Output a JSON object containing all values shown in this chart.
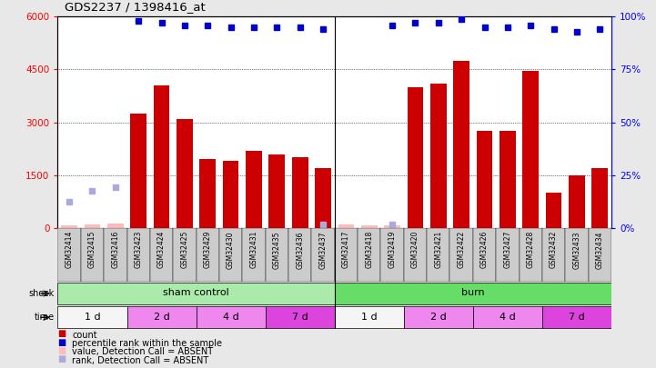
{
  "title": "GDS2237 / 1398416_at",
  "samples": [
    "GSM32414",
    "GSM32415",
    "GSM32416",
    "GSM32423",
    "GSM32424",
    "GSM32425",
    "GSM32429",
    "GSM32430",
    "GSM32431",
    "GSM32435",
    "GSM32436",
    "GSM32437",
    "GSM32417",
    "GSM32418",
    "GSM32419",
    "GSM32420",
    "GSM32421",
    "GSM32422",
    "GSM32426",
    "GSM32427",
    "GSM32428",
    "GSM32432",
    "GSM32433",
    "GSM32434"
  ],
  "counts": [
    80,
    100,
    130,
    3250,
    4050,
    3100,
    1950,
    1900,
    2200,
    2100,
    2000,
    1700,
    100,
    80,
    80,
    4000,
    4100,
    4750,
    2750,
    2750,
    4450,
    1000,
    1500,
    1700
  ],
  "percentile": [
    null,
    null,
    null,
    98,
    97,
    96,
    96,
    95,
    95,
    95,
    95,
    94,
    null,
    null,
    96,
    97,
    97,
    99,
    95,
    95,
    96,
    94,
    93,
    94
  ],
  "absent_count_vals": [
    80,
    100,
    130,
    null,
    null,
    null,
    null,
    null,
    null,
    null,
    null,
    null,
    100,
    80,
    80,
    null,
    null,
    null,
    null,
    null,
    null,
    null,
    null,
    null
  ],
  "absent_rank_vals": [
    750,
    1050,
    1150,
    null,
    null,
    null,
    null,
    null,
    null,
    null,
    null,
    100,
    null,
    null,
    100,
    null,
    null,
    null,
    null,
    null,
    null,
    null,
    null,
    null
  ],
  "ylim_left": [
    0,
    6000
  ],
  "ylim_right": [
    0,
    100
  ],
  "yticks_left": [
    0,
    1500,
    3000,
    4500,
    6000
  ],
  "yticks_right": [
    0,
    25,
    50,
    75,
    100
  ],
  "bar_color": "#cc0000",
  "blue_dot_color": "#0000cc",
  "absent_count_color": "#ffbbbb",
  "absent_rank_color": "#aaaadd",
  "shock_groups": [
    {
      "label": "sham control",
      "start": 0,
      "end": 11,
      "color": "#aaeaaa"
    },
    {
      "label": "burn",
      "start": 12,
      "end": 23,
      "color": "#66dd66"
    }
  ],
  "time_groups": [
    {
      "label": "1 d",
      "start": 0,
      "end": 2,
      "color": "#f5f5f5"
    },
    {
      "label": "2 d",
      "start": 3,
      "end": 5,
      "color": "#ee88ee"
    },
    {
      "label": "4 d",
      "start": 6,
      "end": 8,
      "color": "#ee88ee"
    },
    {
      "label": "7 d",
      "start": 9,
      "end": 11,
      "color": "#dd44dd"
    },
    {
      "label": "1 d",
      "start": 12,
      "end": 14,
      "color": "#f5f5f5"
    },
    {
      "label": "2 d",
      "start": 15,
      "end": 17,
      "color": "#ee88ee"
    },
    {
      "label": "4 d",
      "start": 18,
      "end": 20,
      "color": "#ee88ee"
    },
    {
      "label": "7 d",
      "start": 21,
      "end": 23,
      "color": "#dd44dd"
    }
  ],
  "background_color": "#e8e8e8",
  "plot_bg": "#ffffff",
  "xtick_bg": "#cccccc",
  "legend_items": [
    {
      "color": "#cc0000",
      "label": "count"
    },
    {
      "color": "#0000cc",
      "label": "percentile rank within the sample"
    },
    {
      "color": "#ffbbbb",
      "label": "value, Detection Call = ABSENT"
    },
    {
      "color": "#aaaadd",
      "label": "rank, Detection Call = ABSENT"
    }
  ]
}
